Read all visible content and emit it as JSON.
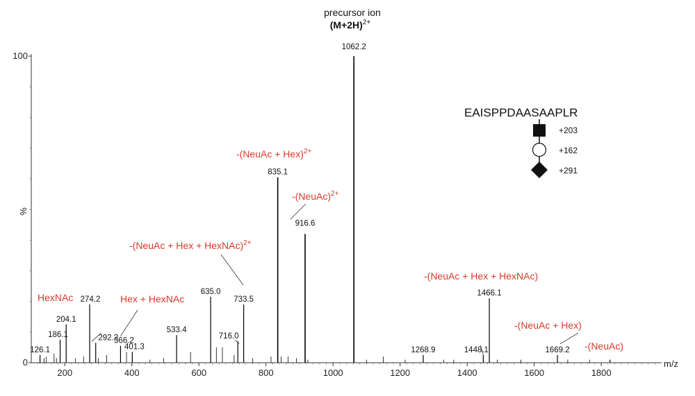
{
  "chart_data": {
    "type": "bar",
    "xlabel": "m/z",
    "ylabel": "%",
    "xlim": [
      100,
      1980
    ],
    "ylim": [
      0,
      100
    ],
    "x_ticks": [
      200,
      400,
      600,
      800,
      1000,
      1200,
      1400,
      1600,
      1800
    ],
    "x_tick_labels": [
      "200",
      "400",
      "600",
      "800",
      "1000",
      "1200",
      "1400",
      "1600",
      "1800"
    ],
    "y_ticks": [
      0,
      100
    ],
    "y_tick_labels": [
      "0",
      "100"
    ],
    "peaks": [
      {
        "mz": 126.1,
        "intensity": 2.5,
        "label": "126.1"
      },
      {
        "mz": 186.1,
        "intensity": 7.5,
        "label": "186.1"
      },
      {
        "mz": 204.1,
        "intensity": 12.5,
        "label": "204.1"
      },
      {
        "mz": 274.2,
        "intensity": 19,
        "label": "274.2"
      },
      {
        "mz": 292.2,
        "intensity": 6.5,
        "label": "292.2"
      },
      {
        "mz": 366.2,
        "intensity": 5.5,
        "label": "366.2"
      },
      {
        "mz": 401.3,
        "intensity": 3.5,
        "label": "401.3"
      },
      {
        "mz": 533.4,
        "intensity": 9,
        "label": "533.4"
      },
      {
        "mz": 635.0,
        "intensity": 21.5,
        "label": "635.0"
      },
      {
        "mz": 716.0,
        "intensity": 7,
        "label": "716.0"
      },
      {
        "mz": 733.5,
        "intensity": 19,
        "label": "733.5"
      },
      {
        "mz": 835.1,
        "intensity": 60.5,
        "label": "835.1"
      },
      {
        "mz": 916.6,
        "intensity": 42,
        "label": "916.6"
      },
      {
        "mz": 1062.2,
        "intensity": 100,
        "label": "1062.2"
      },
      {
        "mz": 1268.9,
        "intensity": 2.5,
        "label": "1268.9"
      },
      {
        "mz": 1448.1,
        "intensity": 2.5,
        "label": "1448.1"
      },
      {
        "mz": 1466.1,
        "intensity": 21,
        "label": "1466.1"
      },
      {
        "mz": 1669.2,
        "intensity": 2.5,
        "label": "1669.2"
      },
      {
        "mz": 1826.0,
        "intensity": 1,
        "label": ""
      }
    ],
    "minor_peaks": [
      {
        "mz": 138,
        "intensity": 1.5
      },
      {
        "mz": 145,
        "intensity": 2
      },
      {
        "mz": 168,
        "intensity": 3
      },
      {
        "mz": 175,
        "intensity": 1.5
      },
      {
        "mz": 232,
        "intensity": 1.5
      },
      {
        "mz": 256,
        "intensity": 2
      },
      {
        "mz": 300,
        "intensity": 1.5
      },
      {
        "mz": 325,
        "intensity": 2.5
      },
      {
        "mz": 384,
        "intensity": 3.5
      },
      {
        "mz": 454,
        "intensity": 1
      },
      {
        "mz": 495,
        "intensity": 1.5
      },
      {
        "mz": 575,
        "intensity": 3.5
      },
      {
        "mz": 652,
        "intensity": 5
      },
      {
        "mz": 670,
        "intensity": 5
      },
      {
        "mz": 705,
        "intensity": 2.5
      },
      {
        "mz": 760,
        "intensity": 1.5
      },
      {
        "mz": 815,
        "intensity": 2
      },
      {
        "mz": 845,
        "intensity": 2
      },
      {
        "mz": 866,
        "intensity": 2
      },
      {
        "mz": 891,
        "intensity": 1.5
      },
      {
        "mz": 925,
        "intensity": 1
      },
      {
        "mz": 1100,
        "intensity": 1
      },
      {
        "mz": 1150,
        "intensity": 2
      },
      {
        "mz": 1215,
        "intensity": 1
      },
      {
        "mz": 1330,
        "intensity": 1
      },
      {
        "mz": 1360,
        "intensity": 1
      },
      {
        "mz": 1490,
        "intensity": 1
      },
      {
        "mz": 1560,
        "intensity": 1
      },
      {
        "mz": 1700,
        "intensity": 1
      },
      {
        "mz": 1765,
        "intensity": 1
      }
    ],
    "annotations": [
      {
        "text": "HexNAc",
        "sup": "",
        "color": "#d63a2a"
      },
      {
        "text": "Hex + HexNAc",
        "sup": "",
        "color": "#d63a2a"
      },
      {
        "text": "-(NeuAc + Hex + HexNAc)",
        "sup": "2+",
        "color": "#d63a2a"
      },
      {
        "text": "-(NeuAc + Hex)",
        "sup": "2+",
        "color": "#d63a2a"
      },
      {
        "text": "-(NeuAc)",
        "sup": "2+",
        "color": "#d63a2a"
      },
      {
        "text": "-(NeuAc + Hex + HexNAc)",
        "sup": "",
        "color": "#d63a2a"
      },
      {
        "text": "-(NeuAc + Hex)",
        "sup": "",
        "color": "#d63a2a"
      },
      {
        "text": "-(NeuAc)",
        "sup": "",
        "color": "#d63a2a"
      }
    ],
    "precursor": {
      "line1": "precursor ion",
      "line2": "(M+2H)",
      "sup": "2+"
    },
    "glycopeptide": {
      "sequence": "EAISPPDAASAAPLR",
      "residues": [
        {
          "shape": "square",
          "label": "+203"
        },
        {
          "shape": "circle",
          "label": "+162"
        },
        {
          "shape": "diamond",
          "label": "+291"
        }
      ]
    },
    "peak_color": "#000000",
    "annotation_color": "#d63a2a"
  }
}
